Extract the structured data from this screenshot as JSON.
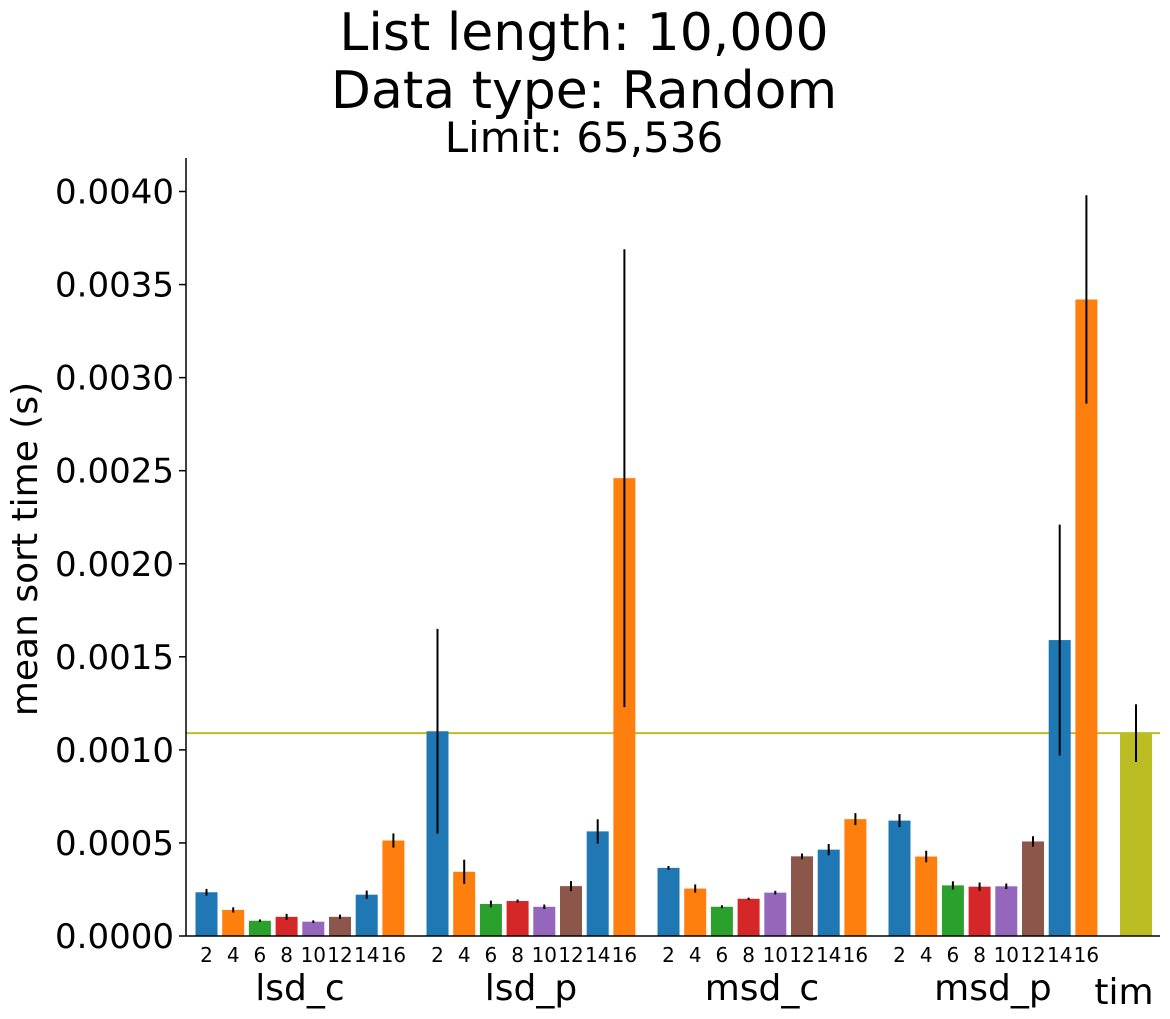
{
  "chart_data": {
    "type": "bar",
    "title": [
      "List length: 10,000",
      "Data type: Random"
    ],
    "subtitle": "Limit: 65,536",
    "ylabel": "mean sort time (s)",
    "xlabel": "",
    "ylim": [
      0,
      0.00418
    ],
    "yticks": [
      "0.0000",
      "0.0005",
      "0.0010",
      "0.0015",
      "0.0020",
      "0.0025",
      "0.0030",
      "0.0035",
      "0.0040"
    ],
    "grid": false,
    "colors": [
      "#1f77b4",
      "#ff7f0e",
      "#2ca02c",
      "#d62728",
      "#9467bd",
      "#8c564b",
      "#1f77b4",
      "#ff7f0e"
    ],
    "tim_color": "#bcbd22",
    "bit_labels": [
      "2",
      "4",
      "6",
      "8",
      "10",
      "12",
      "14",
      "16"
    ],
    "groups": [
      {
        "name": "lsd_c",
        "values": [
          0.000235,
          0.00014,
          8.2e-05,
          0.000103,
          7.7e-05,
          0.000103,
          0.000222,
          0.000513
        ],
        "errors": [
          1.8e-05,
          1.4e-05,
          7e-06,
          1.6e-05,
          7e-06,
          1.2e-05,
          2.2e-05,
          3.8e-05
        ]
      },
      {
        "name": "lsd_p",
        "values": [
          0.0011,
          0.000345,
          0.000172,
          0.000188,
          0.000157,
          0.000268,
          0.000562,
          0.00246
        ],
        "errors": [
          0.00055,
          6.5e-05,
          1.8e-05,
          8e-06,
          1.2e-05,
          2.7e-05,
          6.5e-05,
          0.00123
        ]
      },
      {
        "name": "msd_c",
        "values": [
          0.000366,
          0.000255,
          0.000157,
          0.0002,
          0.000233,
          0.000428,
          0.000464,
          0.000628
        ],
        "errors": [
          1e-05,
          2.2e-05,
          8e-06,
          6e-06,
          1e-05,
          1.5e-05,
          3e-05,
          3.2e-05
        ]
      },
      {
        "name": "msd_p",
        "values": [
          0.00062,
          0.000427,
          0.000272,
          0.000265,
          0.000267,
          0.000508,
          0.00159,
          0.00342
        ],
        "errors": [
          3.5e-05,
          3.1e-05,
          2.2e-05,
          2.2e-05,
          1.5e-05,
          2.8e-05,
          0.00062,
          0.00056
        ]
      }
    ],
    "tim": {
      "name": "tim",
      "value": 0.00109,
      "error": 0.000155
    },
    "reference_line": 0.00109
  }
}
